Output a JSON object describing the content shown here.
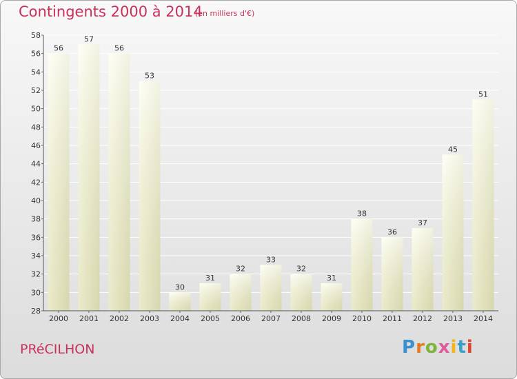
{
  "title": "Contingents 2000 à 2014",
  "subtitle": "(en milliers d'€)",
  "commune": "PRéCILHON",
  "logo": [
    "P",
    "r",
    "o",
    "x",
    "i",
    "t",
    "i"
  ],
  "colors": {
    "title": "#c8325a",
    "bar_light": "#fdfde6",
    "bar_dark": "#d8d8ae",
    "grid": "#ffffff"
  },
  "chart_data": {
    "type": "bar",
    "categories": [
      "2000",
      "2001",
      "2002",
      "2003",
      "2004",
      "2005",
      "2006",
      "2007",
      "2008",
      "2009",
      "2010",
      "2011",
      "2012",
      "2013",
      "2014"
    ],
    "values": [
      56,
      57,
      56,
      53,
      30,
      31,
      32,
      33,
      32,
      31,
      38,
      36,
      37,
      45,
      51
    ],
    "ylim": [
      28,
      58
    ],
    "yticks": [
      28,
      30,
      32,
      34,
      36,
      38,
      40,
      42,
      44,
      46,
      48,
      50,
      52,
      54,
      56,
      58
    ],
    "grid": true,
    "title": "Contingents 2000 à 2014",
    "xlabel": "",
    "ylabel": ""
  }
}
